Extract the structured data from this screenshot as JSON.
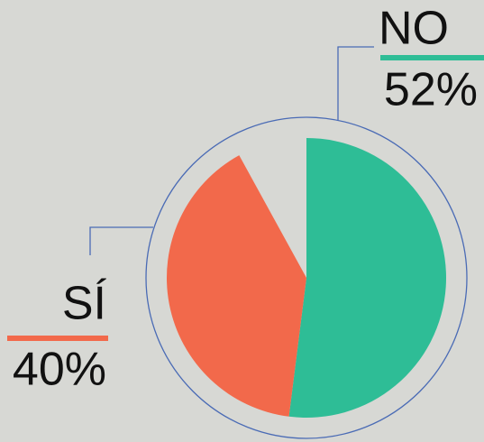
{
  "chart_data": {
    "type": "pie",
    "categories": [
      "NO",
      "SÍ"
    ],
    "values": [
      52,
      40
    ],
    "value_labels": [
      "52%",
      "40%"
    ],
    "colors": [
      "#2ebd96",
      "#f2694b"
    ]
  }
}
